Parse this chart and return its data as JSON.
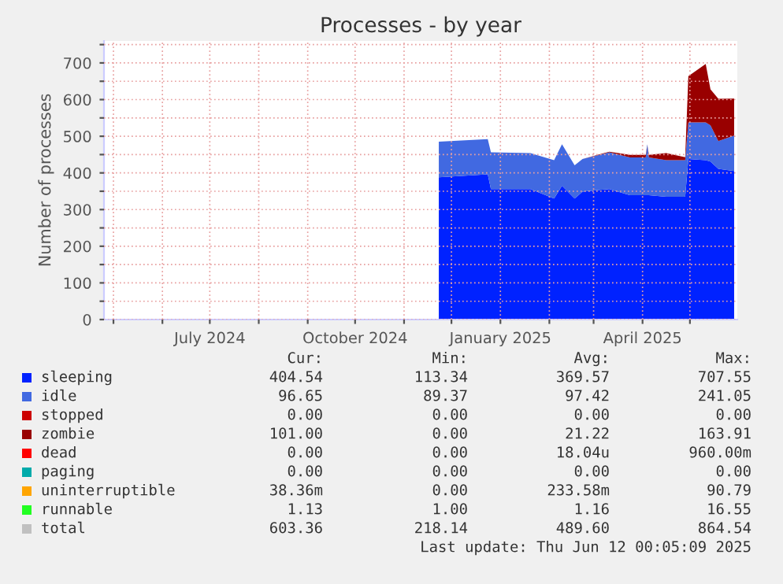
{
  "chart_data": {
    "type": "area",
    "stacked": true,
    "title": "Processes - by year",
    "ylabel": "Number of processes",
    "x": [
      "2024-11-23",
      "2024-12-24",
      "2024-12-26",
      "2025-01-20",
      "2025-02-04",
      "2025-02-09",
      "2025-02-17",
      "2025-02-22",
      "2025-03-11",
      "2025-03-24",
      "2025-04-03",
      "2025-04-04",
      "2025-04-05",
      "2025-04-16",
      "2025-04-28",
      "2025-04-30",
      "2025-05-11",
      "2025-05-14",
      "2025-05-19",
      "2025-05-29"
    ],
    "series": [
      {
        "name": "sleeping",
        "color": "#0022ff",
        "values": [
          388,
          396,
          356,
          356,
          330,
          365,
          330,
          349,
          356,
          339,
          339,
          339,
          339,
          335,
          335,
          438,
          435,
          431,
          411,
          405
        ]
      },
      {
        "name": "idle",
        "color": "#4169e1",
        "values": [
          97,
          96,
          100,
          98,
          105,
          113,
          91,
          89,
          100,
          103,
          103,
          139,
          103,
          100,
          100,
          100,
          103,
          99,
          76,
          97
        ]
      },
      {
        "name": "stopped",
        "color": "#cc0000",
        "values": [
          null,
          null,
          null,
          null,
          null,
          null,
          null,
          null,
          null,
          null,
          null,
          null,
          null,
          null,
          null,
          null,
          null,
          null,
          null,
          null
        ]
      },
      {
        "name": "zombie",
        "color": "#990000",
        "values": [
          0,
          0,
          0,
          0,
          0,
          0,
          0,
          0,
          2,
          7,
          7,
          0,
          7,
          19,
          8,
          126,
          159,
          98,
          115,
          101
        ]
      },
      {
        "name": "dead",
        "color": "#ff0000",
        "values": [
          null,
          null,
          null,
          null,
          null,
          null,
          null,
          null,
          null,
          null,
          null,
          null,
          null,
          null,
          null,
          null,
          null,
          null,
          null,
          null
        ]
      },
      {
        "name": "paging",
        "color": "#00aaaa",
        "values": [
          null,
          null,
          null,
          null,
          null,
          null,
          null,
          null,
          null,
          null,
          null,
          null,
          null,
          null,
          null,
          null,
          null,
          null,
          null,
          null
        ]
      },
      {
        "name": "uninterruptible",
        "color": "#ffa500",
        "values": [
          null,
          null,
          null,
          null,
          null,
          null,
          null,
          null,
          null,
          null,
          null,
          null,
          null,
          null,
          null,
          null,
          null,
          null,
          null,
          null
        ]
      },
      {
        "name": "runnable",
        "color": "#22ff22",
        "values": [
          null,
          null,
          null,
          null,
          null,
          null,
          null,
          null,
          null,
          null,
          null,
          null,
          null,
          null,
          null,
          null,
          null,
          null,
          null,
          null
        ]
      },
      {
        "name": "total",
        "color": "#c0c0c0",
        "values": [
          null,
          null,
          null,
          null,
          null,
          null,
          null,
          null,
          null,
          null,
          null,
          null,
          null,
          null,
          null,
          null,
          null,
          null,
          null,
          null
        ]
      }
    ],
    "xlim": [
      "2024-04-25",
      "2025-05-31"
    ],
    "xticks": [
      {
        "value": "2024-05-01",
        "label": null
      },
      {
        "value": "2024-06-01",
        "label": null
      },
      {
        "value": "2024-07-01",
        "label": "July 2024"
      },
      {
        "value": "2024-08-01",
        "label": null
      },
      {
        "value": "2024-09-01",
        "label": null
      },
      {
        "value": "2024-10-01",
        "label": "October 2024"
      },
      {
        "value": "2024-11-01",
        "label": null
      },
      {
        "value": "2024-12-01",
        "label": null
      },
      {
        "value": "2025-01-01",
        "label": "January 2025"
      },
      {
        "value": "2025-02-01",
        "label": null
      },
      {
        "value": "2025-03-01",
        "label": null
      },
      {
        "value": "2025-04-01",
        "label": "April 2025"
      },
      {
        "value": "2025-05-01",
        "label": null
      }
    ],
    "ylim": [
      0,
      760
    ],
    "yticks": [
      0,
      {
        "value": 50,
        "label": null
      },
      100,
      {
        "value": 150,
        "label": null
      },
      200,
      {
        "value": 250,
        "label": null
      },
      300,
      {
        "value": 350,
        "label": null
      },
      400,
      {
        "value": 450,
        "label": null
      },
      500,
      {
        "value": 550,
        "label": null
      },
      600,
      {
        "value": 650,
        "label": null
      },
      700,
      {
        "value": 750,
        "label": null
      }
    ],
    "grid": true,
    "legend": "bottom",
    "annotations": [
      "Cur:",
      "Min:",
      "Avg:",
      "Max:",
      "404.54",
      "113.34",
      "369.57",
      "707.55",
      "96.65",
      "89.37",
      "97.42",
      "241.05",
      "0.00",
      "0.00",
      "0.00",
      "0.00",
      "101.00",
      "0.00",
      "21.22",
      "163.91",
      "0.00",
      "0.00",
      "18.04u",
      "960.00m",
      "0.00",
      "0.00",
      "0.00",
      "0.00",
      "38.36m",
      "0.00",
      "233.58m",
      "90.79",
      "1.13",
      "1.00",
      "1.16",
      "16.55",
      "603.36",
      "218.14",
      "489.60",
      "864.54",
      "Last update: Thu Jun 12 00:05:09 2025"
    ]
  }
}
